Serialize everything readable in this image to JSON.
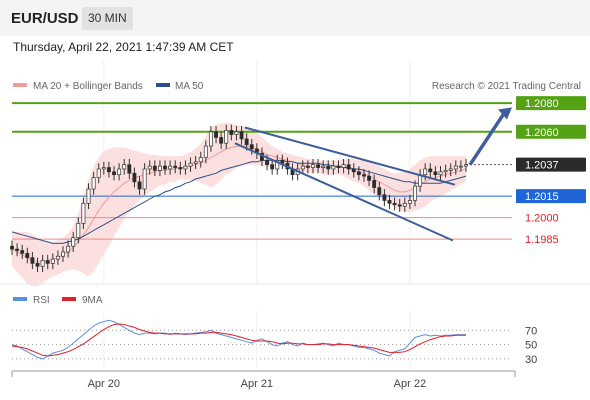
{
  "header": {
    "symbol": "EUR/USD",
    "timeframe": "30 MIN"
  },
  "timestamp": "Thursday, April 22, 2021 1:47:39 AM CET",
  "legend": {
    "ma20": "MA 20 + Bollinger Bands",
    "ma50": "MA 50",
    "copyright": "Research © 2021 Trading Central",
    "rsi": "RSI",
    "rsi_ma": "9MA"
  },
  "colors": {
    "resistance": "#55a315",
    "pivot": "#1f65d8",
    "support": "#f08787",
    "support_text": "#e0202b",
    "ma20": "#f29a9a",
    "ma50": "#2c4f8c",
    "bollinger": "#fbdada",
    "rsi": "#5a8fe0",
    "rsi_ma": "#e0202b",
    "price_tag": "#2a2a2a"
  },
  "chart_data": [
    {
      "type": "line",
      "title": "",
      "ylim": [
        1.1955,
        1.2085
      ],
      "x_ticks": [
        "Apr 20",
        "Apr 21",
        "Apr 22"
      ],
      "levels": [
        {
          "name": "resistance_2",
          "value": 1.208,
          "label": "1.2080",
          "kind": "resistance"
        },
        {
          "name": "resistance_1",
          "value": 1.206,
          "label": "1.2060",
          "kind": "resistance"
        },
        {
          "name": "last_price",
          "value": 1.2037,
          "label": "1.2037",
          "kind": "price"
        },
        {
          "name": "pivot",
          "value": 1.2015,
          "label": "1.2015",
          "kind": "pivot"
        },
        {
          "name": "support_1",
          "value": 1.2,
          "label": "1.2000",
          "kind": "support"
        },
        {
          "name": "support_2",
          "value": 1.1985,
          "label": "1.1985",
          "kind": "support"
        }
      ],
      "price_series": [
        1.1978,
        1.1977,
        1.1975,
        1.1972,
        1.1968,
        1.1966,
        1.197,
        1.1968,
        1.1971,
        1.1973,
        1.1976,
        1.198,
        1.1986,
        1.1996,
        1.201,
        1.202,
        1.2028,
        1.2034,
        1.2035,
        1.2032,
        1.203,
        1.2034,
        1.2037,
        1.2031,
        1.2025,
        1.202,
        1.2034,
        1.2036,
        1.2033,
        1.2036,
        1.2034,
        1.2036,
        1.2035,
        1.2034,
        1.2036,
        1.2038,
        1.2039,
        1.2042,
        1.205,
        1.206,
        1.2056,
        1.2052,
        1.2061,
        1.2058,
        1.206,
        1.2055,
        1.2051,
        1.2048,
        1.2045,
        1.204,
        1.2037,
        1.2034,
        1.204,
        1.2038,
        1.2034,
        1.203,
        1.2034,
        1.2036,
        1.2035,
        1.2037,
        1.2035,
        1.2036,
        1.2034,
        1.2036,
        1.2035,
        1.2037,
        1.2034,
        1.2032,
        1.203,
        1.2029,
        1.2026,
        1.2021,
        1.2016,
        1.2012,
        1.201,
        1.2009,
        1.2008,
        1.201,
        1.2012,
        1.2022,
        1.203,
        1.2034,
        1.2032,
        1.203,
        1.2032,
        1.2033,
        1.2034,
        1.2036,
        1.2036,
        1.2037
      ],
      "ma20_series": [
        1.1978,
        1.1976,
        1.1974,
        1.1972,
        1.197,
        1.1969,
        1.1969,
        1.197,
        1.1971,
        1.1972,
        1.1974,
        1.1976,
        1.1979,
        1.1983,
        1.1988,
        1.1993,
        1.1999,
        1.2005,
        1.201,
        1.2014,
        1.2018,
        1.2021,
        1.2024,
        1.2026,
        1.2028,
        1.2029,
        1.203,
        1.2031,
        1.2032,
        1.2033,
        1.2033,
        1.2034,
        1.2034,
        1.2035,
        1.2035,
        1.2036,
        1.2037,
        1.2038,
        1.204,
        1.2042,
        1.2044,
        1.2046,
        1.2048,
        1.2049,
        1.205,
        1.205,
        1.205,
        1.2049,
        1.2048,
        1.2046,
        1.2044,
        1.2043,
        1.2042,
        1.2041,
        1.204,
        1.2039,
        1.2038,
        1.2037,
        1.2036,
        1.2036,
        1.2036,
        1.2035,
        1.2035,
        1.2035,
        1.2035,
        1.2035,
        1.2034,
        1.2033,
        1.2032,
        1.2031,
        1.2029,
        1.2027,
        1.2025,
        1.2023,
        1.2021,
        1.2019,
        1.2018,
        1.2018,
        1.2019,
        1.2021,
        1.2023,
        1.2025,
        1.2027,
        1.2028,
        1.2029,
        1.203,
        1.2031,
        1.2032,
        1.2033,
        1.2034
      ],
      "bb_upper": [
        1.199,
        1.199,
        1.199,
        1.199,
        1.1988,
        1.1986,
        1.1984,
        1.1983,
        1.1983,
        1.1984,
        1.1986,
        1.1989,
        1.1994,
        1.2003,
        1.2015,
        1.2027,
        1.2036,
        1.2042,
        1.2046,
        1.2048,
        1.2049,
        1.2049,
        1.2049,
        1.2048,
        1.2047,
        1.2046,
        1.2045,
        1.2044,
        1.2044,
        1.2043,
        1.2043,
        1.2043,
        1.2043,
        1.2043,
        1.2044,
        1.2046,
        1.2048,
        1.2052,
        1.2057,
        1.2063,
        1.2065,
        1.2066,
        1.2066,
        1.2066,
        1.2065,
        1.2064,
        1.2063,
        1.2061,
        1.2059,
        1.2056,
        1.2053,
        1.205,
        1.2048,
        1.2046,
        1.2045,
        1.2044,
        1.2043,
        1.2042,
        1.2041,
        1.2041,
        1.204,
        1.204,
        1.204,
        1.204,
        1.204,
        1.2041,
        1.2041,
        1.2041,
        1.204,
        1.204,
        1.2039,
        1.2038,
        1.2036,
        1.2034,
        1.2032,
        1.2031,
        1.2031,
        1.2032,
        1.2034,
        1.2037,
        1.204,
        1.2042,
        1.2043,
        1.2043,
        1.2043,
        1.2043,
        1.2043,
        1.2043,
        1.2043,
        1.2043
      ],
      "bb_lower": [
        1.1966,
        1.1962,
        1.1958,
        1.1954,
        1.1952,
        1.1952,
        1.1954,
        1.1957,
        1.1959,
        1.196,
        1.1962,
        1.1963,
        1.1964,
        1.1963,
        1.1961,
        1.1959,
        1.1962,
        1.1968,
        1.1974,
        1.198,
        1.1987,
        1.1993,
        1.1999,
        1.2004,
        1.2009,
        1.2012,
        1.2015,
        1.2018,
        1.202,
        1.2023,
        1.2023,
        1.2025,
        1.2025,
        1.2027,
        1.2026,
        1.2026,
        1.2026,
        1.2024,
        1.2023,
        1.2021,
        1.2023,
        1.2026,
        1.203,
        1.2032,
        1.2035,
        1.2036,
        1.2037,
        1.2037,
        1.2037,
        1.2036,
        1.2035,
        1.2036,
        1.2036,
        1.2036,
        1.2035,
        1.2034,
        1.2033,
        1.2032,
        1.2031,
        1.2031,
        1.2032,
        1.203,
        1.203,
        1.203,
        1.203,
        1.2029,
        1.2027,
        1.2025,
        1.2024,
        1.2022,
        1.2019,
        1.2016,
        1.2014,
        1.2012,
        1.201,
        1.2007,
        1.2005,
        1.2004,
        1.2004,
        1.2005,
        1.2006,
        1.2008,
        1.2011,
        1.2013,
        1.2015,
        1.2017,
        1.2019,
        1.2021,
        1.2023,
        1.2025
      ],
      "ma50_series": [
        1.199,
        1.1989,
        1.1988,
        1.1987,
        1.1986,
        1.1985,
        1.1984,
        1.1983,
        1.1982,
        1.1982,
        1.1982,
        1.1983,
        1.1984,
        1.1985,
        1.1987,
        1.1989,
        1.1991,
        1.1993,
        1.1995,
        1.1997,
        1.1999,
        1.2001,
        1.2003,
        1.2005,
        1.2007,
        1.2009,
        1.2011,
        1.2013,
        1.2015,
        1.2016,
        1.2018,
        1.2019,
        1.2021,
        1.2022,
        1.2024,
        1.2025,
        1.2027,
        1.2028,
        1.2029,
        1.203,
        1.2031,
        1.2033,
        1.2034,
        1.2035,
        1.2036,
        1.2037,
        1.2038,
        1.2039,
        1.2039,
        1.204,
        1.204,
        1.204,
        1.204,
        1.204,
        1.2039,
        1.2039,
        1.2038,
        1.2038,
        1.2038,
        1.2038,
        1.2038,
        1.2037,
        1.2037,
        1.2036,
        1.2036,
        1.2035,
        1.2035,
        1.2034,
        1.2034,
        1.2033,
        1.2032,
        1.2031,
        1.203,
        1.2029,
        1.2028,
        1.2027,
        1.2026,
        1.2025,
        1.2025,
        1.2024,
        1.2024,
        1.2024,
        1.2024,
        1.2024,
        1.2024,
        1.2025,
        1.2026,
        1.2027,
        1.2028,
        1.2029
      ],
      "channel_upper": [
        [
          1.2063,
          1.2023
        ]
      ],
      "channel_lower": [
        [
          1.2052,
          1.1984
        ]
      ]
    },
    {
      "type": "line",
      "title": "",
      "ylim": [
        20,
        90
      ],
      "y_ticks": [
        70,
        50,
        30
      ],
      "rsi_series": [
        50,
        48,
        44,
        40,
        36,
        32,
        30,
        34,
        38,
        40,
        42,
        46,
        52,
        58,
        64,
        70,
        76,
        80,
        82,
        84,
        82,
        78,
        74,
        70,
        66,
        64,
        66,
        66,
        65,
        66,
        66,
        64,
        66,
        65,
        64,
        65,
        66,
        67,
        68,
        70,
        66,
        64,
        62,
        60,
        58,
        56,
        54,
        52,
        56,
        58,
        54,
        50,
        48,
        52,
        54,
        50,
        48,
        52,
        50,
        50,
        51,
        52,
        50,
        48,
        52,
        50,
        50,
        48,
        46,
        46,
        44,
        42,
        38,
        36,
        34,
        40,
        42,
        44,
        52,
        60,
        62,
        64,
        62,
        63,
        62,
        63,
        63,
        64,
        64,
        64
      ],
      "rsi_ma_series": [
        48,
        47,
        46,
        44,
        41,
        38,
        35,
        34,
        35,
        36,
        38,
        40,
        43,
        47,
        51,
        56,
        61,
        66,
        71,
        75,
        78,
        79,
        78,
        76,
        74,
        71,
        69,
        67,
        66,
        66,
        65,
        65,
        65,
        65,
        65,
        65,
        65,
        66,
        66,
        67,
        67,
        66,
        65,
        64,
        62,
        60,
        58,
        56,
        55,
        55,
        55,
        54,
        52,
        51,
        52,
        52,
        51,
        51,
        50,
        50,
        50,
        51,
        51,
        50,
        50,
        50,
        50,
        49,
        48,
        47,
        46,
        45,
        43,
        41,
        39,
        39,
        39,
        40,
        43,
        47,
        51,
        54,
        57,
        59,
        61,
        62,
        62,
        63,
        63,
        63
      ]
    }
  ]
}
